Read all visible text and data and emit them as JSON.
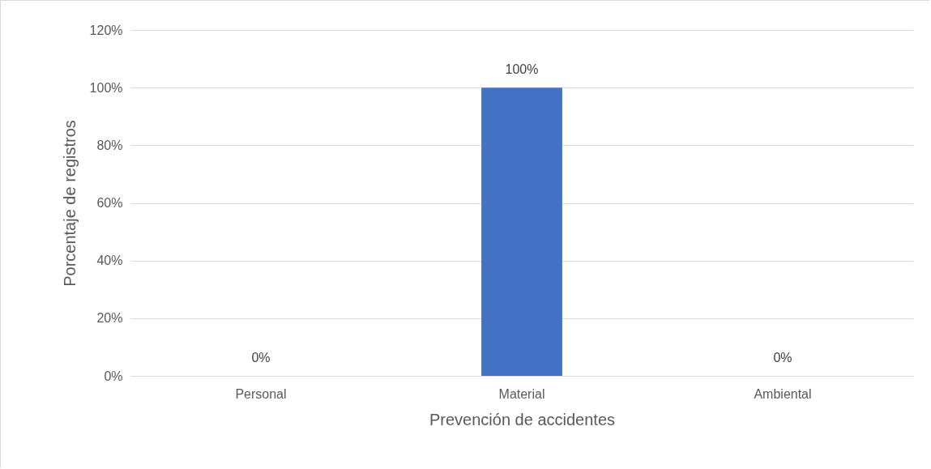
{
  "chart_data": {
    "type": "bar",
    "categories": [
      "Personal",
      "Material",
      "Ambiental"
    ],
    "values": [
      0,
      100,
      0
    ],
    "value_labels": [
      "0%",
      "100%",
      "0%"
    ],
    "color": "#4472c4",
    "xlabel": "Prevención de accidentes",
    "ylabel": "Porcentaje de registros",
    "ylim": [
      0,
      120
    ],
    "yticks": [
      {
        "value": 0,
        "label": "0%"
      },
      {
        "value": 20,
        "label": "20%"
      },
      {
        "value": 40,
        "label": "40%"
      },
      {
        "value": 60,
        "label": "60%"
      },
      {
        "value": 80,
        "label": "80%"
      },
      {
        "value": 100,
        "label": "100%"
      },
      {
        "value": 120,
        "label": "120%"
      }
    ],
    "grid": "y"
  }
}
